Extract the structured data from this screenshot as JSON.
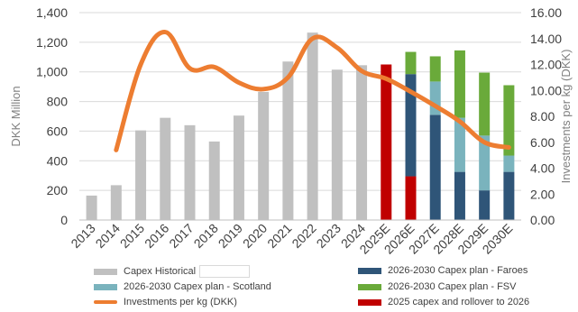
{
  "chart_data": {
    "type": "bar",
    "categories": [
      "2013",
      "2014",
      "2015",
      "2016",
      "2017",
      "2018",
      "2019",
      "2020",
      "2021",
      "2022",
      "2023",
      "2024",
      "2025E",
      "2026E",
      "2027E",
      "2028E",
      "2029E",
      "2030E"
    ],
    "left_axis": {
      "label": "DKK Million",
      "ylim": [
        0,
        1400
      ],
      "ticks": [
        "0",
        "200",
        "400",
        "600",
        "800",
        "1,000",
        "1,200",
        "1,400"
      ]
    },
    "right_axis": {
      "label": "Investments per kg (DKK)",
      "ylim": [
        0,
        16
      ],
      "ticks": [
        "0.00",
        "2.00",
        "4.00",
        "6.00",
        "8.00",
        "10.00",
        "12.00",
        "14.00",
        "16.00"
      ]
    },
    "series": [
      {
        "name": "Capex Historical",
        "type": "bar",
        "color": "#c0c0c0",
        "values": [
          165,
          235,
          605,
          690,
          640,
          530,
          705,
          865,
          1070,
          1265,
          1015,
          1045,
          null,
          null,
          null,
          null,
          null,
          null
        ]
      },
      {
        "name": "2025 capex and rollover to 2026",
        "type": "bar",
        "color": "#c00000",
        "values": [
          null,
          null,
          null,
          null,
          null,
          null,
          null,
          null,
          null,
          null,
          null,
          null,
          1050,
          295,
          null,
          null,
          null,
          null
        ]
      },
      {
        "name": "2026-2030 Capex plan - Faroes",
        "type": "bar",
        "color": "#2f5578",
        "values": [
          null,
          null,
          null,
          null,
          null,
          null,
          null,
          null,
          null,
          null,
          null,
          null,
          null,
          690,
          710,
          325,
          200,
          325
        ]
      },
      {
        "name": "2026-2030 Capex plan - Scotland",
        "type": "bar",
        "color": "#7ab3bd",
        "values": [
          null,
          null,
          null,
          null,
          null,
          null,
          null,
          null,
          null,
          null,
          null,
          null,
          null,
          0,
          225,
          365,
          370,
          110
        ]
      },
      {
        "name": "2026-2030 Capex plan - FSV",
        "type": "bar",
        "color": "#6aaa3a",
        "values": [
          null,
          null,
          null,
          null,
          null,
          null,
          null,
          null,
          null,
          null,
          null,
          null,
          null,
          150,
          170,
          455,
          425,
          475
        ]
      },
      {
        "name": "Investments per kg (DKK)",
        "type": "line",
        "axis": "right",
        "color": "#ed7d31",
        "values": [
          null,
          5.4,
          12.0,
          14.5,
          11.7,
          11.8,
          10.6,
          10.1,
          11.0,
          14.0,
          13.3,
          11.5,
          10.9,
          9.9,
          8.8,
          7.6,
          6.0,
          5.6
        ]
      }
    ],
    "legend": [
      {
        "label": "Capex Historical",
        "kind": "bar",
        "color": "#c0c0c0"
      },
      {
        "label": "2026-2030 Capex plan - Faroes",
        "kind": "bar",
        "color": "#2f5578"
      },
      {
        "label": "2026-2030 Capex plan - Scotland",
        "kind": "bar",
        "color": "#7ab3bd"
      },
      {
        "label": "2026-2030 Capex plan - FSV",
        "kind": "bar",
        "color": "#6aaa3a"
      },
      {
        "label": "Investments per kg (DKK)",
        "kind": "line",
        "color": "#ed7d31"
      },
      {
        "label": "2025 capex and rollover to 2026",
        "kind": "bar",
        "color": "#c00000"
      }
    ],
    "grid": "horizontal",
    "legend_placement": "bottom"
  }
}
